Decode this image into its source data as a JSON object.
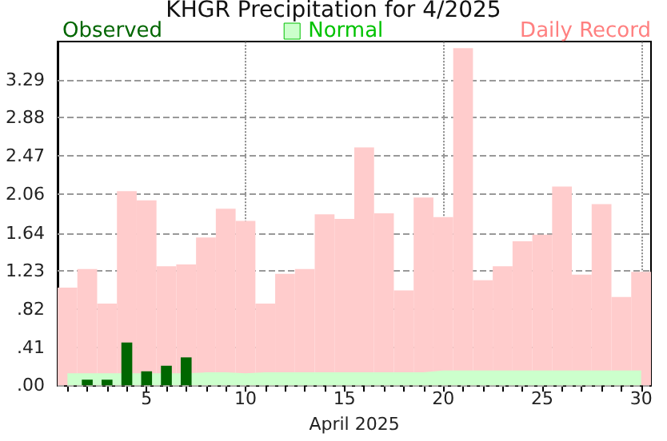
{
  "chart_data": {
    "type": "bar",
    "title": "KHGR Precipitation for 4/2025",
    "xlabel": "April 2025",
    "x": [
      1,
      2,
      3,
      4,
      5,
      6,
      7,
      8,
      9,
      10,
      11,
      12,
      13,
      14,
      15,
      16,
      17,
      18,
      19,
      20,
      21,
      22,
      23,
      24,
      25,
      26,
      27,
      28,
      29,
      30
    ],
    "series": [
      {
        "name": "Daily Record",
        "color": "#ffcccc",
        "values": [
          1.05,
          1.25,
          0.88,
          2.09,
          1.99,
          1.28,
          1.3,
          1.59,
          1.9,
          1.77,
          0.88,
          1.2,
          1.25,
          1.84,
          1.79,
          2.56,
          1.85,
          1.02,
          2.02,
          1.81,
          3.63,
          1.13,
          1.28,
          1.55,
          1.62,
          2.14,
          1.19,
          1.95,
          0.95,
          1.22
        ]
      },
      {
        "name": "Normal",
        "type": "area",
        "color": "#ccffcc",
        "values": [
          0.12,
          0.12,
          0.12,
          0.12,
          0.12,
          0.12,
          0.12,
          0.13,
          0.13,
          0.12,
          0.13,
          0.13,
          0.13,
          0.13,
          0.13,
          0.13,
          0.13,
          0.13,
          0.13,
          0.15,
          0.15,
          0.15,
          0.15,
          0.15,
          0.15,
          0.15,
          0.15,
          0.15,
          0.15,
          0.15
        ]
      },
      {
        "name": "Observed",
        "color": "#006600",
        "values": [
          0,
          0.06,
          0.06,
          0.46,
          0.15,
          0.21,
          0.3,
          0,
          0,
          0,
          0,
          0,
          0,
          0,
          0,
          0,
          0,
          0,
          0,
          0,
          0,
          0,
          0,
          0,
          0,
          0,
          0,
          0,
          0,
          0
        ]
      }
    ],
    "xlim": [
      0.5,
      30.5
    ],
    "xticks": [
      {
        "value": 1,
        "label": null
      },
      {
        "value": 2,
        "label": null
      },
      {
        "value": 3,
        "label": null
      },
      {
        "value": 4,
        "label": null
      },
      5,
      {
        "value": 6,
        "label": null
      },
      {
        "value": 7,
        "label": null
      },
      {
        "value": 8,
        "label": null
      },
      {
        "value": 9,
        "label": null
      },
      10,
      {
        "value": 11,
        "label": null
      },
      {
        "value": 12,
        "label": null
      },
      {
        "value": 13,
        "label": null
      },
      {
        "value": 14,
        "label": null
      },
      15,
      {
        "value": 16,
        "label": null
      },
      {
        "value": 17,
        "label": null
      },
      {
        "value": 18,
        "label": null
      },
      {
        "value": 19,
        "label": null
      },
      20,
      {
        "value": 21,
        "label": null
      },
      {
        "value": 22,
        "label": null
      },
      {
        "value": 23,
        "label": null
      },
      {
        "value": 24,
        "label": null
      },
      25,
      {
        "value": 26,
        "label": null
      },
      {
        "value": 27,
        "label": null
      },
      {
        "value": 28,
        "label": null
      },
      {
        "value": 29,
        "label": null
      },
      30
    ],
    "ylim": [
      0,
      3.7
    ],
    "yticks": [
      {
        "value": 0,
        "label": ".00"
      },
      {
        "value": 0.41,
        "label": ".41"
      },
      {
        "value": 0.82,
        "label": ".82"
      },
      1.23,
      1.64,
      2.06,
      2.47,
      2.88,
      3.29
    ],
    "grid": "y",
    "ref_lines": [
      {
        "axis": "x",
        "value": 10,
        "line_style": "dotted",
        "color": "#888888"
      },
      {
        "axis": "x",
        "value": 20,
        "line_style": "dotted",
        "color": "#888888"
      },
      {
        "axis": "x",
        "value": 30,
        "line_style": "dotted",
        "color": "#888888"
      }
    ],
    "legend": "top"
  }
}
